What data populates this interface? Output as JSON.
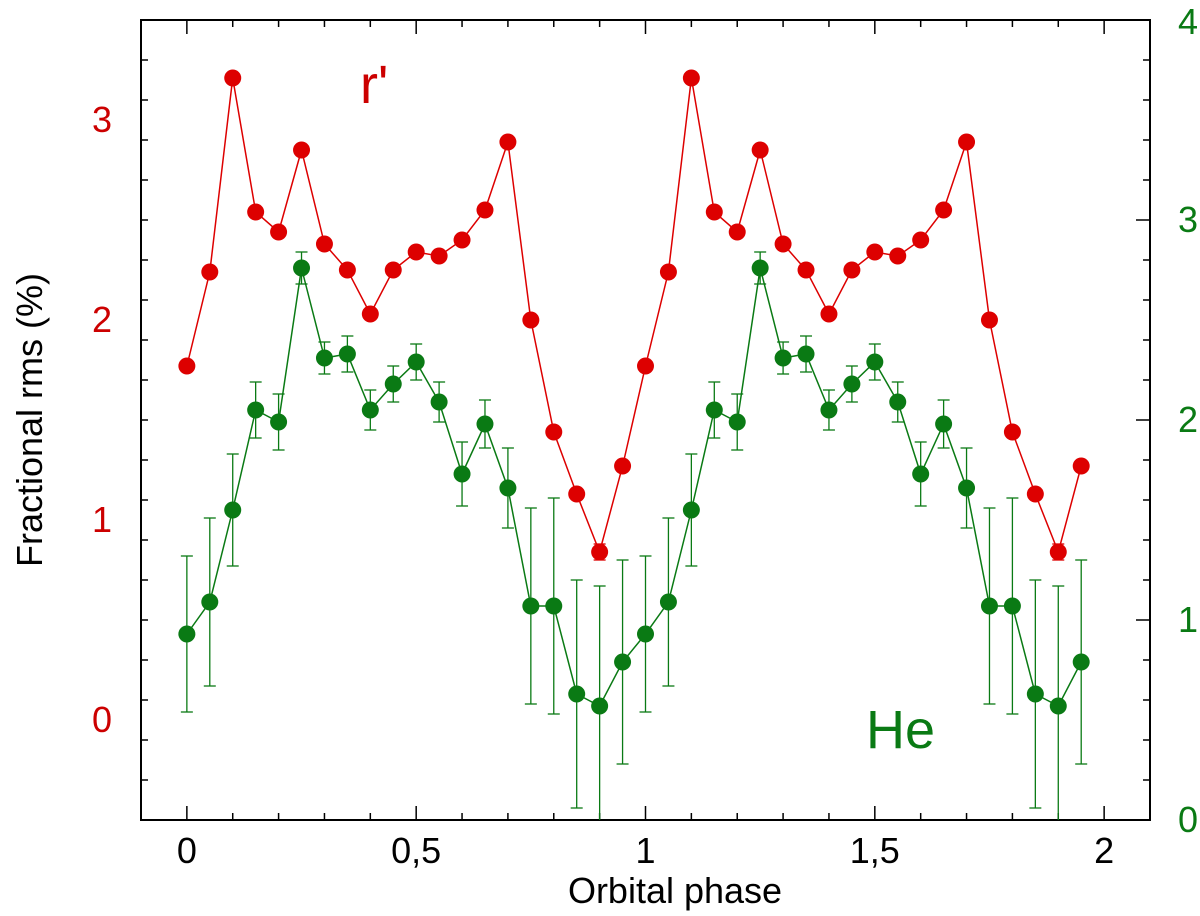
{
  "chart_data": {
    "type": "scatter",
    "x_axis": {
      "label": "Orbital phase",
      "range": [
        -0.1,
        2.1
      ],
      "ticks": [
        0,
        0.5,
        1,
        1.5,
        2
      ],
      "tick_labels": [
        "0",
        "0,5",
        "1",
        "1,5",
        "2"
      ]
    },
    "y_axis_left": {
      "label": "Fractional rms (%)",
      "range": [
        -0.5,
        3.5
      ],
      "ticks": [
        0,
        1,
        2,
        3
      ],
      "tick_labels": [
        "0",
        "1",
        "2",
        "3"
      ],
      "color": "#cc0000"
    },
    "y_axis_right": {
      "range": [
        0,
        4
      ],
      "ticks": [
        0,
        1,
        2,
        3,
        4
      ],
      "tick_labels": [
        "0",
        "1",
        "2",
        "3",
        "4"
      ],
      "color": "#0a7a14"
    },
    "x": [
      0,
      0.05,
      0.1,
      0.15,
      0.2,
      0.25,
      0.3,
      0.35,
      0.4,
      0.45,
      0.5,
      0.55,
      0.6,
      0.65,
      0.7,
      0.75,
      0.8,
      0.85,
      0.9,
      0.95,
      1.0,
      1.05,
      1.1,
      1.15,
      1.2,
      1.25,
      1.3,
      1.35,
      1.4,
      1.45,
      1.5,
      1.55,
      1.6,
      1.65,
      1.7,
      1.75,
      1.8,
      1.85,
      1.9,
      1.95
    ],
    "series": [
      {
        "name": "r'",
        "axis": "left",
        "color": "#dd0000",
        "values": [
          1.77,
          2.24,
          3.21,
          2.54,
          2.44,
          2.85,
          2.38,
          2.25,
          2.03,
          2.25,
          2.34,
          2.32,
          2.4,
          2.55,
          2.89,
          2.0,
          1.44,
          1.13,
          0.84,
          1.27,
          1.77,
          2.24,
          3.21,
          2.54,
          2.44,
          2.85,
          2.38,
          2.25,
          2.03,
          2.25,
          2.34,
          2.32,
          2.4,
          2.55,
          2.89,
          2.0,
          1.44,
          1.13,
          0.84,
          1.27
        ],
        "errors": [
          0.02,
          0.02,
          0.02,
          0.02,
          0.02,
          0.02,
          0.02,
          0.02,
          0.02,
          0.02,
          0.02,
          0.02,
          0.02,
          0.02,
          0.02,
          0.02,
          0.02,
          0.02,
          0.04,
          0.02,
          0.02,
          0.02,
          0.02,
          0.02,
          0.02,
          0.02,
          0.02,
          0.02,
          0.02,
          0.02,
          0.02,
          0.02,
          0.02,
          0.02,
          0.02,
          0.02,
          0.02,
          0.02,
          0.04,
          0.02
        ]
      },
      {
        "name": "He",
        "axis": "right",
        "color": "#0a7a14",
        "values": [
          0.93,
          1.09,
          1.55,
          2.05,
          1.99,
          2.76,
          2.31,
          2.33,
          2.05,
          2.18,
          2.29,
          2.09,
          1.73,
          1.98,
          1.66,
          1.07,
          1.07,
          0.63,
          0.57,
          0.79,
          0.93,
          1.09,
          1.55,
          2.05,
          1.99,
          2.76,
          2.31,
          2.33,
          2.05,
          2.18,
          2.29,
          2.09,
          1.73,
          1.98,
          1.66,
          1.07,
          1.07,
          0.63,
          0.57,
          0.79
        ],
        "errors": [
          0.39,
          0.42,
          0.28,
          0.14,
          0.14,
          0.08,
          0.08,
          0.09,
          0.1,
          0.09,
          0.09,
          0.1,
          0.16,
          0.12,
          0.2,
          0.49,
          0.54,
          0.57,
          0.6,
          0.51,
          0.39,
          0.42,
          0.28,
          0.14,
          0.14,
          0.08,
          0.08,
          0.09,
          0.1,
          0.09,
          0.09,
          0.1,
          0.16,
          0.12,
          0.2,
          0.49,
          0.54,
          0.57,
          0.6,
          0.51
        ]
      }
    ],
    "annotations": [
      {
        "text": "r'",
        "color": "#cc0000"
      },
      {
        "text": "He",
        "color": "#0a7a14"
      }
    ]
  }
}
